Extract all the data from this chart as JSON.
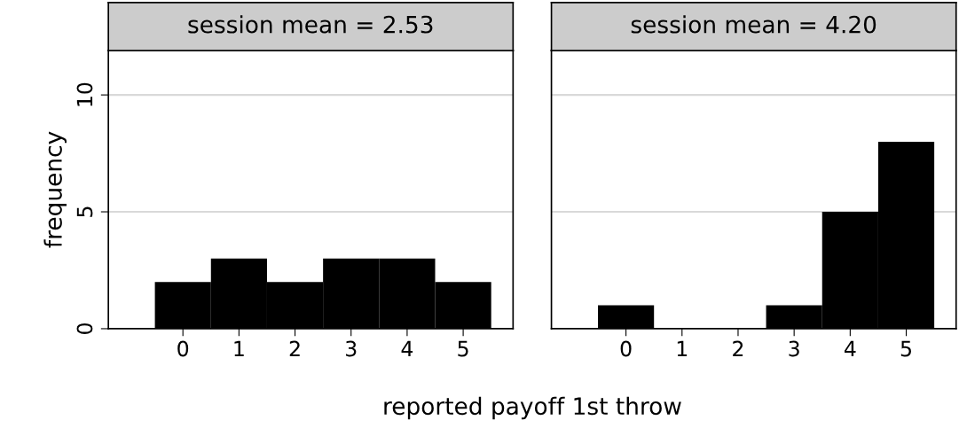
{
  "chart_data": [
    {
      "type": "histogram",
      "title": "session mean = 2.53",
      "xlabel": "reported payoff 1st throw",
      "ylabel": "frequency",
      "bins": [
        -0.5,
        0.5,
        1.5,
        2.5,
        3.5,
        4.5,
        5.5
      ],
      "values": [
        2,
        3,
        2,
        3,
        3,
        2
      ],
      "color": "#000000",
      "xlim": [
        -1.33,
        5.89
      ],
      "xticks": [
        0,
        1,
        2,
        3,
        4,
        5
      ],
      "ylim": [
        0,
        11.9
      ],
      "yticks": [
        0,
        5,
        10
      ],
      "grid": "y"
    },
    {
      "type": "histogram",
      "title": "session mean = 4.20",
      "bins": [
        -0.5,
        0.5,
        1.5,
        2.5,
        3.5,
        4.5,
        5.5
      ],
      "values": [
        1,
        0,
        0,
        1,
        5,
        8
      ],
      "color": "#000000",
      "xlim": [
        -1.33,
        5.89
      ],
      "xticks": [
        0,
        1,
        2,
        3,
        4,
        5
      ],
      "ylim": [
        0,
        11.9
      ],
      "yticks": [
        0,
        5,
        10
      ],
      "grid": "y",
      "tick_labels": "x"
    }
  ]
}
